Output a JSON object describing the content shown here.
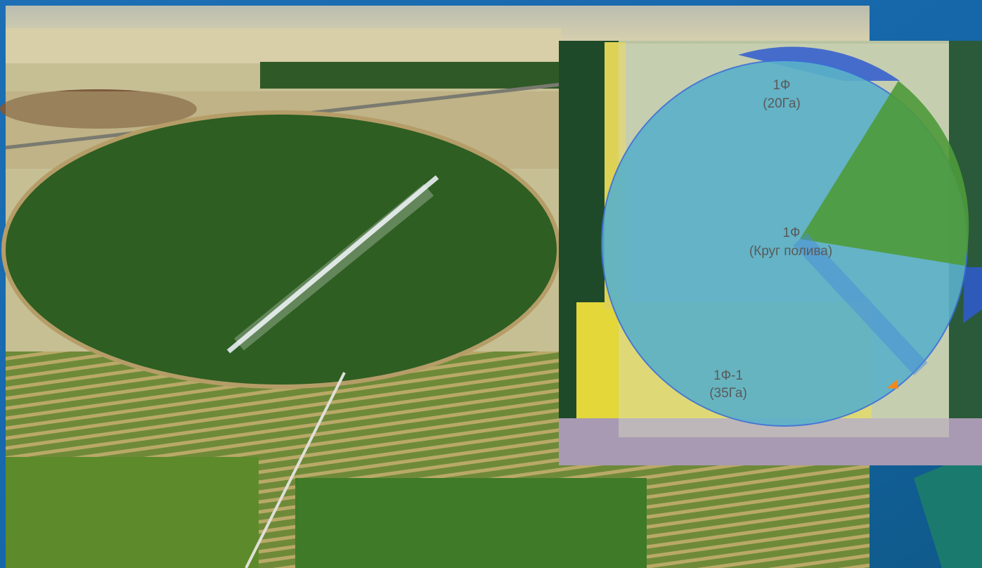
{
  "labels": [
    {
      "name": "1Ф",
      "note": "(20Га)"
    },
    {
      "name": "1Ф",
      "note": "(Круг полива)"
    },
    {
      "name": "1Ф-1",
      "note": "(35Га)"
    }
  ]
}
